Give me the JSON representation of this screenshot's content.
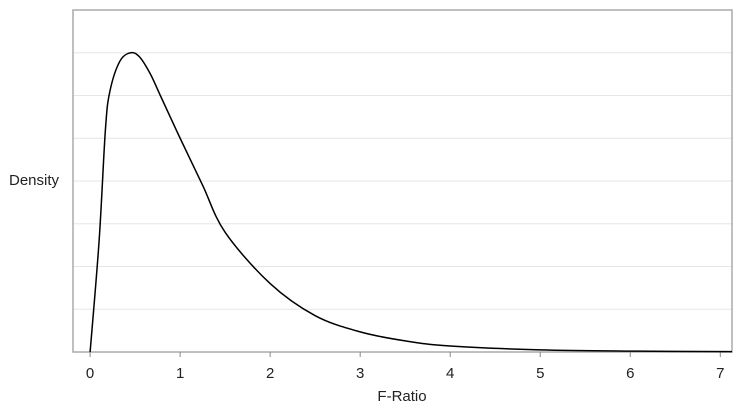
{
  "chart_data": {
    "type": "line",
    "x_label": "F-Ratio",
    "y_label": "Density",
    "x": [
      0,
      0.1,
      0.17,
      0.22,
      0.33,
      0.45,
      0.55,
      0.67,
      0.78,
      1,
      1.25,
      1.5,
      2,
      2.5,
      3,
      3.5,
      4,
      5,
      6,
      7.13
    ],
    "series": [
      {
        "color": "#000000",
        "values": [
          0,
          0.26,
          0.52,
          0.61,
          0.68,
          0.7,
          0.69,
          0.65,
          0.6,
          0.5,
          0.39,
          0.28,
          0.16,
          0.085,
          0.047,
          0.026,
          0.014,
          0.005,
          0.002,
          0.001
        ]
      }
    ],
    "xlim": [
      -0.19,
      7.13
    ],
    "xticks": [
      0,
      1,
      2,
      3,
      4,
      5,
      6,
      7
    ],
    "ylim": [
      0,
      0.8
    ],
    "yticks": [
      0.1,
      0.2,
      0.3,
      0.4,
      0.5,
      0.6,
      0.7
    ],
    "grid": true
  }
}
